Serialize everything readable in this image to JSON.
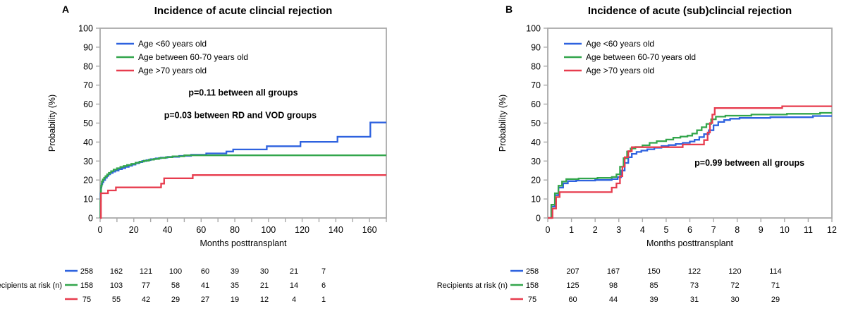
{
  "figure": {
    "risk_label": "Recipients at risk (n)",
    "xlabel": "Months posttransplant",
    "ylabel": "Probability (%)",
    "colors": {
      "blue": "#2e62df",
      "green": "#33a64c",
      "red": "#e73c4e",
      "axis": "#a9a9a9",
      "text": "#000000"
    }
  },
  "chart_data": [
    {
      "type": "line",
      "panel_letter": "A",
      "title": "Incidence of acute clincial rejection",
      "xlabel": "Months posttransplant",
      "ylabel": "Probability (%)",
      "xlim": [
        0,
        170
      ],
      "ylim": [
        0,
        100
      ],
      "xticks": [
        0,
        20,
        40,
        60,
        80,
        100,
        120,
        140,
        160
      ],
      "xminorticks": [
        10,
        30,
        50,
        70,
        90,
        110,
        130,
        150,
        170
      ],
      "yticks": [
        0,
        10,
        20,
        30,
        40,
        50,
        60,
        70,
        80,
        90,
        100
      ],
      "legend": [
        {
          "label": "Age <60 years old",
          "color_key": "blue"
        },
        {
          "label": "Age between 60-70 years old",
          "color_key": "green"
        },
        {
          "label": "Age >70 years old",
          "color_key": "red"
        }
      ],
      "annotations": [
        {
          "text": "p=0.11 between all groups",
          "fx": 0.5,
          "fy": 0.66
        },
        {
          "text": "p=0.03 between RD and VOD groups",
          "fx": 0.49,
          "fy": 0.54
        }
      ],
      "series": [
        {
          "name": "Age <60 years old",
          "color_key": "blue",
          "step_points": [
            [
              0,
              0
            ],
            [
              0.2,
              8
            ],
            [
              0.3,
              13
            ],
            [
              0.5,
              16
            ],
            [
              0.8,
              17.8
            ],
            [
              1.3,
              18.8
            ],
            [
              2,
              20
            ],
            [
              3,
              21.2
            ],
            [
              4,
              22.2
            ],
            [
              5,
              23
            ],
            [
              6,
              23.7
            ],
            [
              7.5,
              24.4
            ],
            [
              9,
              25
            ],
            [
              11,
              25.7
            ],
            [
              13,
              26.3
            ],
            [
              15,
              26.9
            ],
            [
              17,
              27.5
            ],
            [
              19,
              28.1
            ],
            [
              21,
              28.8
            ],
            [
              23,
              29.4
            ],
            [
              25,
              30
            ],
            [
              27.5,
              30.5
            ],
            [
              30,
              31
            ],
            [
              33,
              31.4
            ],
            [
              36,
              31.8
            ],
            [
              40,
              32.2
            ],
            [
              47,
              32.7
            ],
            [
              54,
              33.3
            ],
            [
              63,
              34
            ],
            [
              75,
              35
            ],
            [
              79,
              36.1
            ],
            [
              99,
              37.8
            ],
            [
              119,
              40.1
            ],
            [
              141,
              42.8
            ],
            [
              160.5,
              50.3
            ]
          ]
        },
        {
          "name": "Age between 60-70 years old",
          "color_key": "green",
          "step_points": [
            [
              0,
              0
            ],
            [
              0.2,
              9
            ],
            [
              0.4,
              14
            ],
            [
              0.6,
              17
            ],
            [
              1,
              19.3
            ],
            [
              1.6,
              20.3
            ],
            [
              2.4,
              21.2
            ],
            [
              3.2,
              22
            ],
            [
              4.2,
              23
            ],
            [
              5.2,
              23.8
            ],
            [
              6.5,
              24.7
            ],
            [
              8,
              25.5
            ],
            [
              10,
              26.2
            ],
            [
              12,
              26.9
            ],
            [
              14,
              27.4
            ],
            [
              16,
              27.9
            ],
            [
              18.5,
              28.5
            ],
            [
              21,
              29.1
            ],
            [
              23.5,
              29.7
            ],
            [
              26,
              30.2
            ],
            [
              29,
              30.7
            ],
            [
              32,
              31.1
            ],
            [
              35,
              31.6
            ],
            [
              39,
              32
            ],
            [
              43,
              32.5
            ],
            [
              50,
              33
            ]
          ]
        },
        {
          "name": "Age >70 years old",
          "color_key": "red",
          "step_points": [
            [
              0,
              0
            ],
            [
              0.5,
              13
            ],
            [
              4.7,
              14.5
            ],
            [
              9.4,
              16.1
            ],
            [
              36.2,
              18.1
            ],
            [
              38,
              20.9
            ],
            [
              55,
              22.6
            ]
          ]
        }
      ],
      "risk_table": {
        "label": "Recipients at risk (n)",
        "rows": [
          {
            "color_key": "blue",
            "values": [
              258,
              162,
              121,
              100,
              60,
              39,
              30,
              21,
              7
            ]
          },
          {
            "color_key": "green",
            "values": [
              158,
              103,
              77,
              58,
              41,
              35,
              21,
              14,
              6
            ]
          },
          {
            "color_key": "red",
            "values": [
              75,
              55,
              42,
              29,
              27,
              19,
              12,
              4,
              1
            ]
          }
        ]
      }
    },
    {
      "type": "line",
      "panel_letter": "B",
      "title": "Incidence of acute (sub)clincial rejection",
      "xlabel": "Months posttransplant",
      "ylabel": "Probability (%)",
      "xlim": [
        0,
        12
      ],
      "ylim": [
        0,
        100
      ],
      "xticks": [
        0,
        1,
        2,
        3,
        4,
        5,
        6,
        7,
        8,
        9,
        10,
        11,
        12
      ],
      "xminorticks": [],
      "yticks": [
        0,
        10,
        20,
        30,
        40,
        50,
        60,
        70,
        80,
        90,
        100
      ],
      "legend": [
        {
          "label": "Age <60 years old",
          "color_key": "blue"
        },
        {
          "label": "Age between 60-70 years old",
          "color_key": "green"
        },
        {
          "label": "Age >70 years old",
          "color_key": "red"
        }
      ],
      "annotations": [
        {
          "text": "p=0.99 between all groups",
          "fx": 0.71,
          "fy": 0.29
        }
      ],
      "series": [
        {
          "name": "Age <60 years old",
          "color_key": "blue",
          "step_points": [
            [
              0,
              0
            ],
            [
              0.15,
              6
            ],
            [
              0.3,
              12
            ],
            [
              0.45,
              16
            ],
            [
              0.65,
              18.2
            ],
            [
              0.85,
              19.4
            ],
            [
              1.2,
              19.7
            ],
            [
              2,
              20
            ],
            [
              2.7,
              20.5
            ],
            [
              2.95,
              21.5
            ],
            [
              3.1,
              25
            ],
            [
              3.25,
              29
            ],
            [
              3.4,
              32
            ],
            [
              3.55,
              33.8
            ],
            [
              3.75,
              34.8
            ],
            [
              3.95,
              35.5
            ],
            [
              4.2,
              36.2
            ],
            [
              4.5,
              37
            ],
            [
              4.8,
              37.9
            ],
            [
              5.1,
              38.4
            ],
            [
              5.4,
              39
            ],
            [
              5.7,
              39.6
            ],
            [
              6,
              40.3
            ],
            [
              6.2,
              41.2
            ],
            [
              6.4,
              42.6
            ],
            [
              6.6,
              44.2
            ],
            [
              6.8,
              46.2
            ],
            [
              7,
              48.8
            ],
            [
              7.2,
              50.6
            ],
            [
              7.45,
              51.6
            ],
            [
              7.7,
              52.3
            ],
            [
              8.1,
              52.7
            ],
            [
              9.4,
              53.1
            ],
            [
              11.2,
              53.7
            ]
          ]
        },
        {
          "name": "Age between 60-70 years old",
          "color_key": "green",
          "step_points": [
            [
              0,
              0
            ],
            [
              0.15,
              7
            ],
            [
              0.3,
              13
            ],
            [
              0.45,
              17
            ],
            [
              0.6,
              19.2
            ],
            [
              0.78,
              20.5
            ],
            [
              1.3,
              20.8
            ],
            [
              2.1,
              21.1
            ],
            [
              2.7,
              21.6
            ],
            [
              2.9,
              23
            ],
            [
              3.05,
              27
            ],
            [
              3.2,
              31.5
            ],
            [
              3.35,
              35
            ],
            [
              3.5,
              36.6
            ],
            [
              3.7,
              37.4
            ],
            [
              4,
              38.3
            ],
            [
              4.3,
              39.6
            ],
            [
              4.6,
              40.5
            ],
            [
              5,
              41.3
            ],
            [
              5.3,
              42.3
            ],
            [
              5.6,
              42.9
            ],
            [
              5.9,
              43.4
            ],
            [
              6.1,
              44.5
            ],
            [
              6.3,
              46.2
            ],
            [
              6.5,
              47.8
            ],
            [
              6.7,
              49.6
            ],
            [
              6.9,
              52
            ],
            [
              7.1,
              53.4
            ],
            [
              7.5,
              53.9
            ],
            [
              8.6,
              54.5
            ],
            [
              10.1,
              54.9
            ],
            [
              11.5,
              55.4
            ]
          ]
        },
        {
          "name": "Age >70 years old",
          "color_key": "red",
          "step_points": [
            [
              0,
              0
            ],
            [
              0.2,
              5
            ],
            [
              0.35,
              11
            ],
            [
              0.5,
              13.6
            ],
            [
              2.7,
              16
            ],
            [
              2.9,
              18.2
            ],
            [
              3.05,
              22
            ],
            [
              3.15,
              27
            ],
            [
              3.25,
              32
            ],
            [
              3.4,
              35.2
            ],
            [
              3.55,
              37.3
            ],
            [
              5.7,
              38.7
            ],
            [
              6.6,
              41
            ],
            [
              6.75,
              45
            ],
            [
              6.85,
              50
            ],
            [
              6.95,
              54.5
            ],
            [
              7.05,
              57.9
            ],
            [
              9.9,
              58.9
            ]
          ]
        }
      ],
      "risk_table": {
        "label": "Recipients at risk (n)",
        "rows": [
          {
            "color_key": "blue",
            "values": [
              258,
              207,
              167,
              150,
              122,
              120,
              114
            ]
          },
          {
            "color_key": "green",
            "values": [
              158,
              125,
              98,
              85,
              73,
              72,
              71
            ]
          },
          {
            "color_key": "red",
            "values": [
              75,
              60,
              44,
              39,
              31,
              30,
              29
            ]
          }
        ]
      }
    }
  ]
}
